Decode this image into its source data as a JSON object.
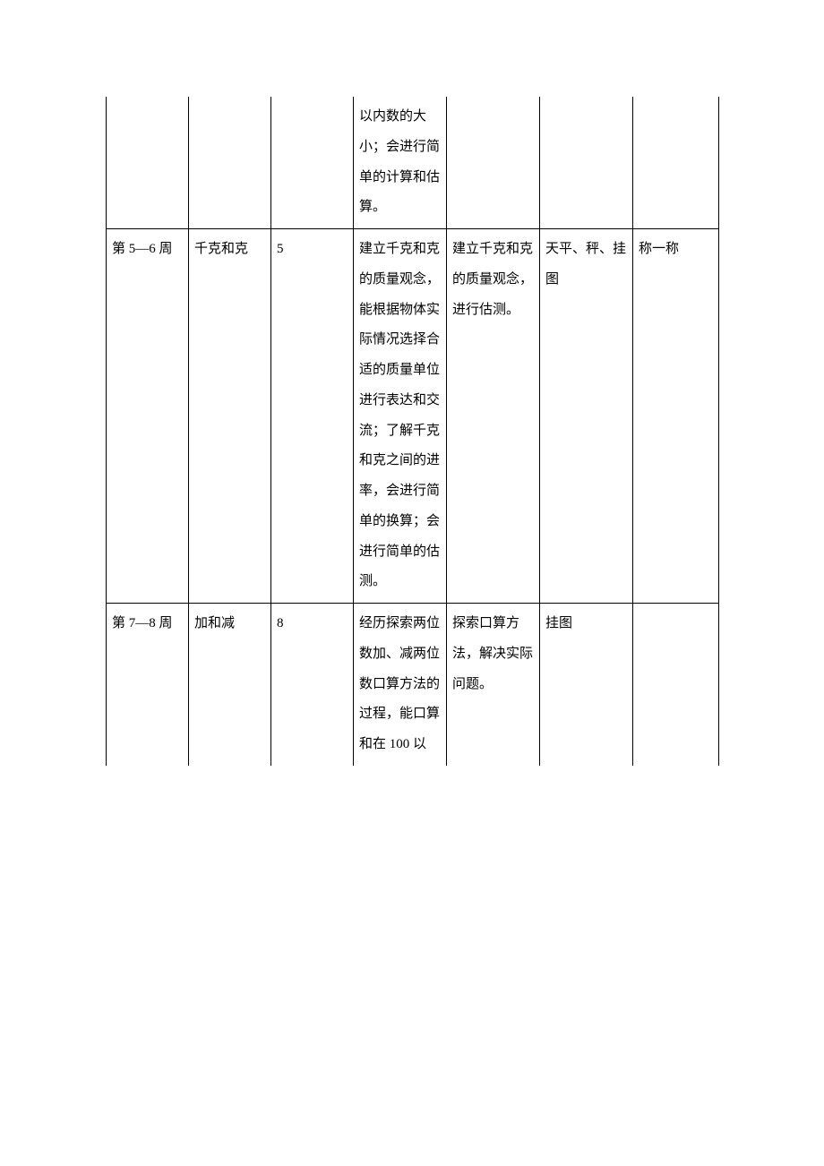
{
  "table": {
    "rows": [
      {
        "c1": "",
        "c2": "",
        "c3": "",
        "c4": "以内数的大小；会进行简单的计算和估算。",
        "c5": "",
        "c6": "",
        "c7": "",
        "noTop": true
      },
      {
        "c1": "第 5—6 周",
        "c2": "千克和克",
        "c3": "5",
        "c4": "建立千克和克的质量观念，能根据物体实际情况选择合适的质量单位进行表达和交流；了解千克和克之间的进率，会进行简单的换算；会进行简单的估测。",
        "c5": "建立千克和克的质量观念，进行估测。",
        "c6": "天平、秤、挂图",
        "c7": "称一称"
      },
      {
        "c1": "第 7—8 周",
        "c2": "加和减",
        "c3": "8",
        "c4": "经历探索两位数加、减两位数口算方法的过程，能口算和在 100 以",
        "c5": "探索口算方法，解决实际问题。",
        "c6": "挂图",
        "c7": "",
        "noBottom": true
      }
    ]
  }
}
